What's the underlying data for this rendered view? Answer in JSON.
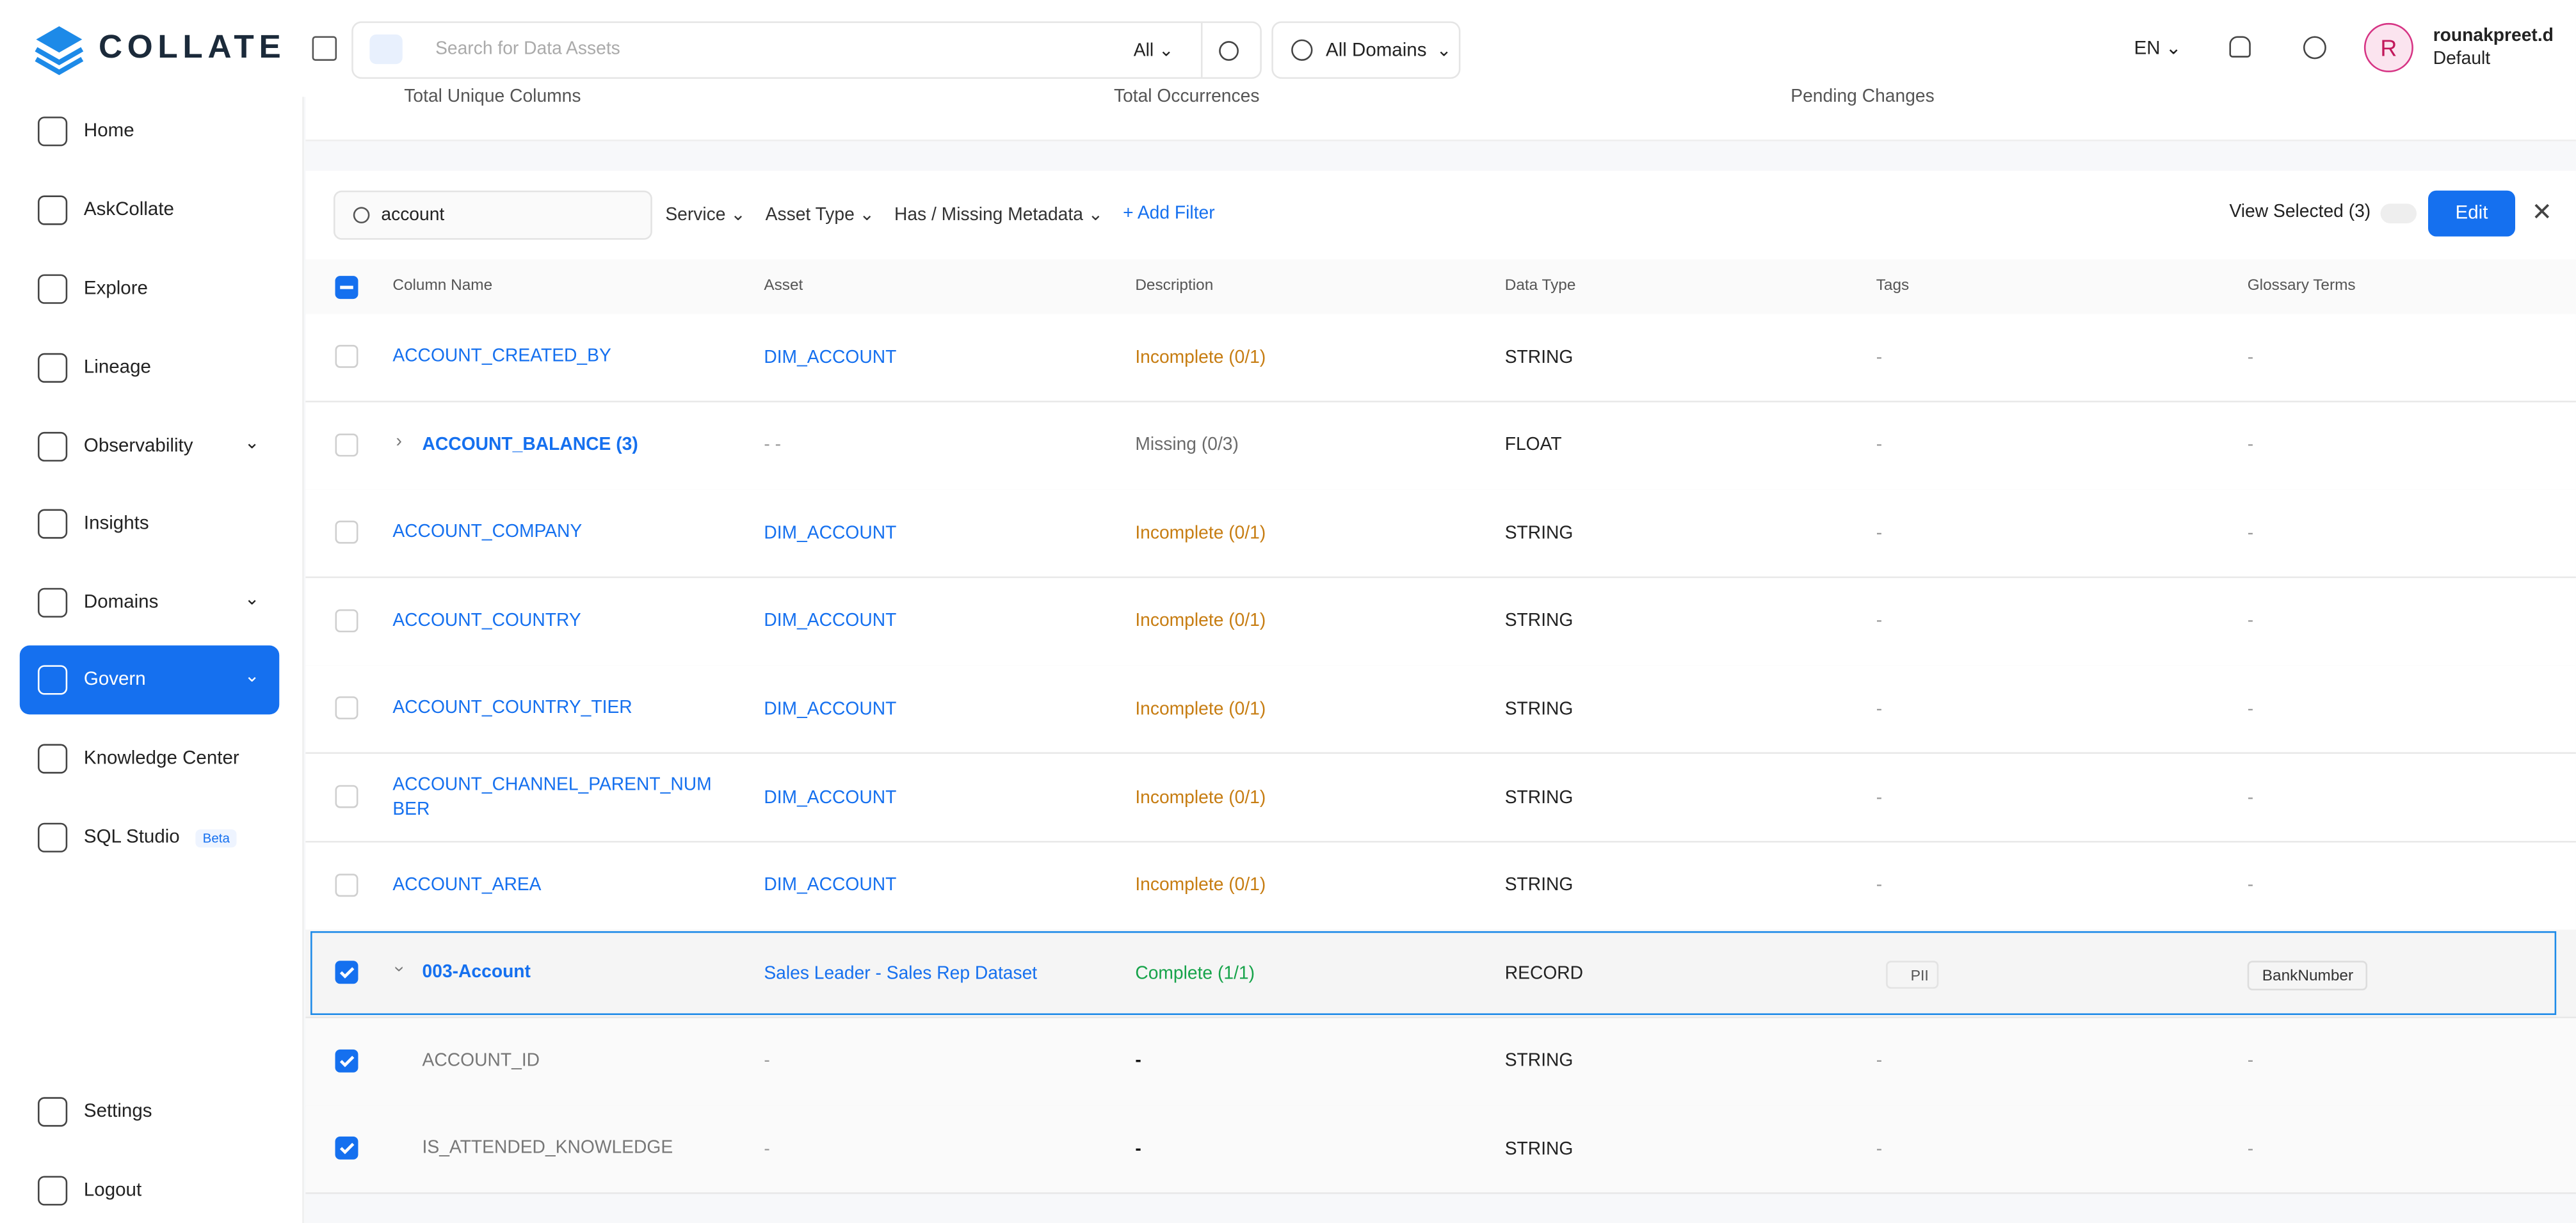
{
  "brand": "COLLATE",
  "topbar": {
    "search_placeholder": "Search for Data Assets",
    "search_scope": "All",
    "domains": "All Domains",
    "language": "EN",
    "avatar": "R",
    "user_name": "rounakpreet.d",
    "user_role": "Default"
  },
  "nav": {
    "items": [
      "Home",
      "AskCollate",
      "Explore",
      "Lineage",
      "Observability",
      "Insights",
      "Domains",
      "Govern",
      "Knowledge Center",
      "SQL Studio"
    ],
    "active": "Govern",
    "beta": "Beta",
    "bottom": [
      "Settings",
      "Logout"
    ]
  },
  "stats": [
    "Total Unique Columns",
    "Total Occurrences",
    "Pending Changes"
  ],
  "filters": {
    "search": "account",
    "dropdowns": [
      "Service",
      "Asset Type",
      "Has / Missing Metadata"
    ],
    "add": "+ Add Filter",
    "view_selected": "View Selected (3)",
    "edit": "Edit"
  },
  "table": {
    "headers": [
      "Column Name",
      "Asset",
      "Description",
      "Data Type",
      "Tags",
      "Glossary Terms"
    ],
    "rows": [
      {
        "checked": false,
        "expanded": null,
        "child": false,
        "name": "ACCOUNT_CREATED_BY",
        "asset": "DIM_ACCOUNT",
        "description": "Incomplete (0/1)",
        "description_color": "#c77d12",
        "data_type": "STRING",
        "tags": "-",
        "glossary": "-"
      },
      {
        "checked": false,
        "expanded": false,
        "child": false,
        "name": "ACCOUNT_BALANCE (3)",
        "asset": "- -",
        "description": "Missing (0/3)",
        "description_color": "#6b6b6b",
        "data_type": "FLOAT",
        "tags": "-",
        "glossary": "-"
      },
      {
        "checked": false,
        "expanded": null,
        "child": false,
        "name": "ACCOUNT_COMPANY",
        "asset": "DIM_ACCOUNT",
        "description": "Incomplete (0/1)",
        "description_color": "#c77d12",
        "data_type": "STRING",
        "tags": "-",
        "glossary": "-"
      },
      {
        "checked": false,
        "expanded": null,
        "child": false,
        "name": "ACCOUNT_COUNTRY",
        "asset": "DIM_ACCOUNT",
        "description": "Incomplete (0/1)",
        "description_color": "#c77d12",
        "data_type": "STRING",
        "tags": "-",
        "glossary": "-"
      },
      {
        "checked": false,
        "expanded": null,
        "child": false,
        "name": "ACCOUNT_COUNTRY_TIER",
        "asset": "DIM_ACCOUNT",
        "description": "Incomplete (0/1)",
        "description_color": "#c77d12",
        "data_type": "STRING",
        "tags": "-",
        "glossary": "-"
      },
      {
        "checked": false,
        "expanded": null,
        "child": false,
        "name": "ACCOUNT_CHANNEL_PARENT_NUMBER",
        "asset": "DIM_ACCOUNT",
        "description": "Incomplete (0/1)",
        "description_color": "#c77d12",
        "data_type": "STRING",
        "tags": "-",
        "glossary": "-"
      },
      {
        "checked": false,
        "expanded": null,
        "child": false,
        "name": "ACCOUNT_AREA",
        "asset": "DIM_ACCOUNT",
        "description": "Incomplete (0/1)",
        "description_color": "#c77d12",
        "data_type": "STRING",
        "tags": "-",
        "glossary": "-"
      },
      {
        "checked": true,
        "expanded": true,
        "child": false,
        "name": "003-Account",
        "asset": "Sales Leader - Sales Rep Dataset",
        "description": "Complete (1/1)",
        "description_color": "#16a34a",
        "data_type": "RECORD",
        "tags": "PII",
        "glossary": "BankNumber"
      },
      {
        "checked": true,
        "expanded": null,
        "child": true,
        "name": "ACCOUNT_ID",
        "asset": "-",
        "description": "-",
        "description_color": "#111111",
        "data_type": "STRING",
        "tags": "-",
        "glossary": "-"
      },
      {
        "checked": true,
        "expanded": null,
        "child": true,
        "name": "IS_ATTENDED_KNOWLEDGE",
        "asset": "-",
        "description": "-",
        "description_color": "#111111",
        "data_type": "STRING",
        "tags": "-",
        "glossary": "-"
      }
    ]
  }
}
